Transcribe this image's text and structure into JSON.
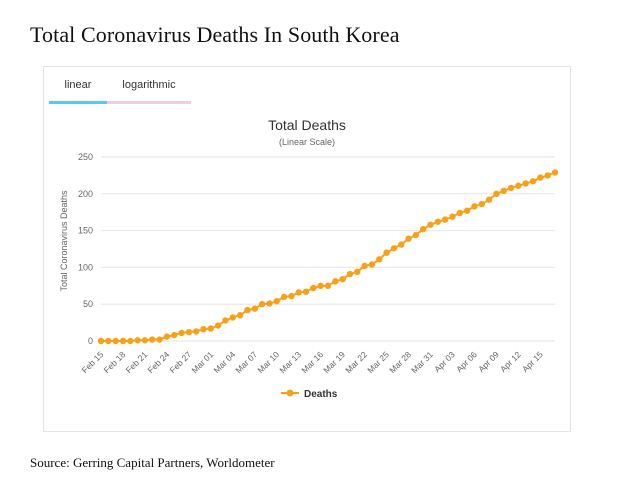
{
  "page": {
    "heading": "Total Coronavirus Deaths In South Korea",
    "source": "Source: Gerring Capital Partners, Worldometer"
  },
  "tabs": [
    {
      "label": "linear",
      "active": true,
      "color": "#5bc8f2"
    },
    {
      "label": "logarithmic",
      "active": false,
      "color": "#f5cdd6"
    }
  ],
  "colors": {
    "series": "#f7a11a",
    "grid": "#e6e6e6",
    "axis_text": "#666666"
  },
  "chart_data": {
    "type": "line",
    "title": "Total Deaths",
    "subtitle": "(Linear Scale)",
    "ylabel": "Total Coronavirus Deaths",
    "xlabel": "",
    "ylim": [
      0,
      250
    ],
    "yticks": [
      0,
      50,
      100,
      150,
      200,
      250
    ],
    "tick_labels": [
      "Feb 15",
      "Feb 18",
      "Feb 21",
      "Feb 24",
      "Feb 27",
      "Mar 01",
      "Mar 04",
      "Mar 07",
      "Mar 10",
      "Mar 13",
      "Mar 16",
      "Mar 19",
      "Mar 22",
      "Mar 25",
      "Mar 28",
      "Mar 31",
      "Apr 03",
      "Apr 06",
      "Apr 09",
      "Apr 12",
      "Apr 15"
    ],
    "tick_every": 3,
    "grid": true,
    "legend": "bottom-center",
    "series": [
      {
        "name": "Deaths",
        "values": [
          0,
          0,
          0,
          0,
          0,
          1,
          1,
          2,
          2,
          6,
          8,
          11,
          12,
          13,
          16,
          17,
          21,
          28,
          32,
          35,
          42,
          44,
          50,
          51,
          54,
          60,
          61,
          66,
          67,
          72,
          75,
          75,
          81,
          84,
          91,
          94,
          102,
          104,
          111,
          120,
          126,
          131,
          139,
          144,
          152,
          158,
          162,
          165,
          169,
          174,
          177,
          183,
          186,
          192,
          200,
          204,
          208,
          211,
          214,
          217,
          222,
          225,
          229
        ]
      }
    ]
  }
}
